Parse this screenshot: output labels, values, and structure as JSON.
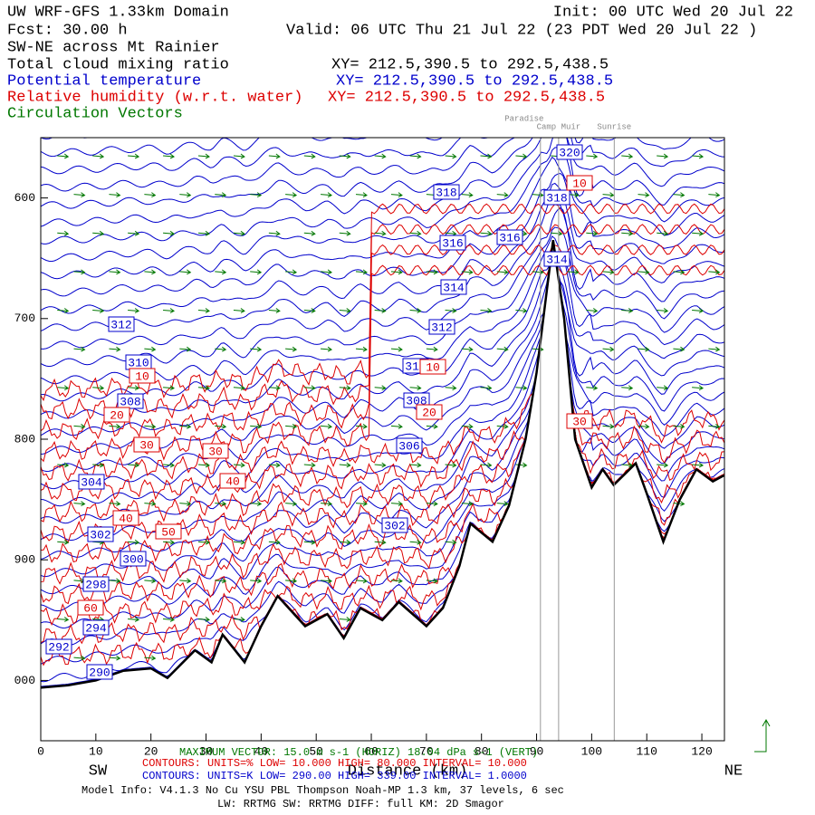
{
  "chart_data": {
    "type": "cross-section",
    "title": "UW WRF-GFS 1.33km Domain",
    "init": "Init: 00 UTC Wed 20 Jul 22",
    "fcst": "Fcst:   30.00 h",
    "valid": "Valid: 06 UTC Thu 21 Jul 22   (23 PDT Wed 20 Jul 22  )",
    "subtitle": "SW-NE across Mt Rainier",
    "fields": [
      {
        "name": "Total cloud mixing ratio",
        "xy": "XY= 212.5,390.5 to 292.5,438.5",
        "color": "#000000"
      },
      {
        "name": "Potential temperature",
        "xy": "XY= 212.5,390.5 to 292.5,438.5",
        "color": "#0000cc"
      },
      {
        "name": "Relative humidity (w.r.t. water)",
        "xy": "XY= 212.5,390.5 to 292.5,438.5",
        "color": "#dd0000"
      },
      {
        "name": "Circulation Vectors",
        "color": "#007700"
      }
    ],
    "places": [
      "Paradise",
      "Camp Muir",
      "Sunrise"
    ],
    "place_x": [
      90.7,
      94.0,
      104.1
    ],
    "x_label": "Distance (km)",
    "x_left": "SW",
    "x_right": "NE",
    "xlim": [
      0,
      124.1
    ],
    "xticks": [
      0,
      10,
      20,
      30,
      40,
      50,
      60,
      70,
      80,
      90,
      100,
      110,
      120
    ],
    "ylim": [
      1050,
      550
    ],
    "yticks": [
      600,
      700,
      800,
      900,
      {
        "value": 1000,
        "label": "000"
      }
    ],
    "series": [
      {
        "name": "Terrain",
        "color": "#000000",
        "x": [
          0,
          5,
          10,
          15,
          20,
          23,
          28,
          31,
          33,
          37,
          40,
          43,
          48,
          52,
          55,
          58,
          62,
          65,
          70,
          73,
          76,
          78,
          82,
          85,
          88,
          90,
          93,
          95,
          97,
          100,
          102,
          104,
          108,
          110,
          113,
          116,
          119,
          122,
          124
        ],
        "values": [
          1006,
          1004,
          1000,
          992,
          990,
          998,
          975,
          985,
          962,
          985,
          955,
          930,
          955,
          945,
          965,
          940,
          950,
          935,
          955,
          940,
          905,
          870,
          885,
          855,
          800,
          745,
          635,
          700,
          800,
          840,
          825,
          838,
          820,
          845,
          885,
          850,
          825,
          835,
          830
        ]
      }
    ],
    "theta_labels": [
      "320",
      "318",
      "318",
      "316",
      "316",
      "314",
      "312",
      "312",
      "310",
      "310",
      "308",
      "308",
      "306",
      "304",
      "302",
      "302",
      "300",
      "298",
      "294",
      "292",
      "290",
      "314"
    ],
    "rh_labels": [
      "10",
      "10",
      "10",
      "20",
      "20",
      "30",
      "30",
      "30",
      "40",
      "40",
      "50",
      "60"
    ],
    "footer": [
      "MAXIMUM VECTOR: 15.0 m s-1 (HORIZ)     18.04 dPa s-1 (VERT)",
      "CONTOURS:  UNITS=%  LOW=   10.000        HIGH=   80.000       INTERVAL=   10.000",
      "CONTOURS:  UNITS=K  LOW=   290.00        HIGH=   339.00       INTERVAL=   1.0000",
      "Model Info: V4.1.3    No Cu    YSU PBL   Thompson     Noah-MP    1.3 km,  37 levels,     6 sec",
      "LW: RRTMG SW: RRTMG     DIFF: full    KM: 2D Smagor"
    ]
  }
}
